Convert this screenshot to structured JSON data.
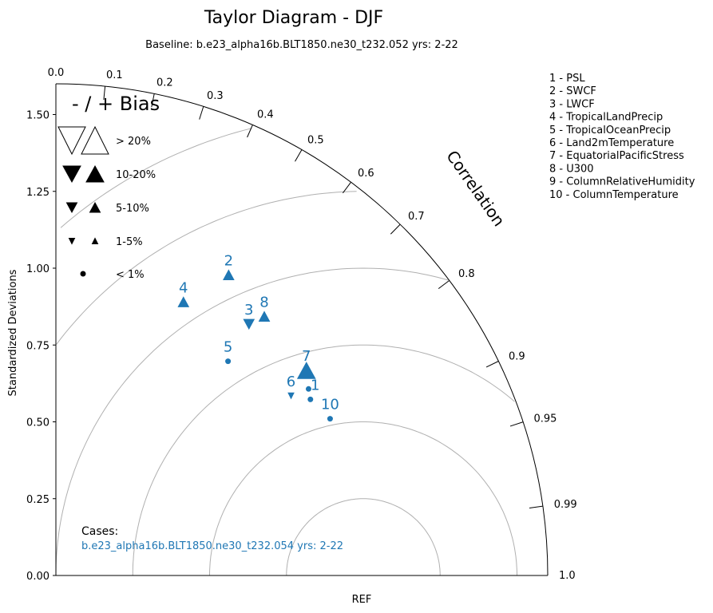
{
  "chart_data": {
    "type": "scatter",
    "title": "Taylor Diagram - DJF",
    "subtitle": "Baseline: b.e23_alpha16b.BLT1850.ne30_t232.052  yrs: 2-22",
    "ylabel": "Standardized Deviations",
    "xlabel": "REF",
    "arc_label": "Correlation",
    "std_ticks": [
      {
        "value": 0.0,
        "label": "0.00"
      },
      {
        "value": 0.25,
        "label": "0.25"
      },
      {
        "value": 0.5,
        "label": "0.50"
      },
      {
        "value": 0.75,
        "label": "0.75"
      },
      {
        "value": 1.0,
        "label": "1.00"
      },
      {
        "value": 1.25,
        "label": "1.25"
      },
      {
        "value": 1.5,
        "label": "1.50"
      }
    ],
    "std_max": 1.6,
    "corr_ticks": [
      {
        "value": 0.0,
        "label": "0.0"
      },
      {
        "value": 0.1,
        "label": "0.1"
      },
      {
        "value": 0.2,
        "label": "0.2"
      },
      {
        "value": 0.3,
        "label": "0.3"
      },
      {
        "value": 0.4,
        "label": "0.4"
      },
      {
        "value": 0.5,
        "label": "0.5"
      },
      {
        "value": 0.6,
        "label": "0.6"
      },
      {
        "value": 0.7,
        "label": "0.7"
      },
      {
        "value": 0.8,
        "label": "0.8"
      },
      {
        "value": 0.9,
        "label": "0.9"
      },
      {
        "value": 0.95,
        "label": "0.95"
      },
      {
        "value": 0.99,
        "label": "0.99"
      },
      {
        "value": 1.0,
        "label": "1.0"
      }
    ],
    "rms_arcs": [
      0.25,
      0.5,
      0.75,
      1.0,
      1.25,
      1.5
    ],
    "points": [
      {
        "id": "1",
        "x": 0.828,
        "y": 0.573,
        "bias": "< 1%",
        "dir": "dot"
      },
      {
        "id": "2",
        "x": 0.562,
        "y": 0.978,
        "bias": "5-10%",
        "dir": "up"
      },
      {
        "id": "3",
        "x": 0.628,
        "y": 0.818,
        "bias": "5-10%",
        "dir": "down"
      },
      {
        "id": "4",
        "x": 0.415,
        "y": 0.89,
        "bias": "5-10%",
        "dir": "up"
      },
      {
        "id": "5",
        "x": 0.56,
        "y": 0.697,
        "bias": "< 1%",
        "dir": "dot"
      },
      {
        "id": "6",
        "x": 0.765,
        "y": 0.585,
        "bias": "1-5%",
        "dir": "down"
      },
      {
        "id": "7",
        "x": 0.815,
        "y": 0.667,
        "bias": "10-20%",
        "dir": "up"
      },
      {
        "id": "8",
        "x": 0.678,
        "y": 0.843,
        "bias": "5-10%",
        "dir": "up"
      },
      {
        "id": "9",
        "x": 0.822,
        "y": 0.607,
        "bias": "< 1%",
        "dir": "dot"
      },
      {
        "id": "10",
        "x": 0.892,
        "y": 0.51,
        "bias": "< 1%",
        "dir": "dot"
      }
    ],
    "series_color": "#1f77b4",
    "bias_legend": {
      "title": "- / + Bias",
      "entries": [
        {
          "label": "> 20%",
          "style": "hollow",
          "size": "xl"
        },
        {
          "label": "10-20%",
          "style": "filled",
          "size": "l"
        },
        {
          "label": "5-10%",
          "style": "filled",
          "size": "m"
        },
        {
          "label": "1-5%",
          "style": "filled",
          "size": "s"
        },
        {
          "label": "< 1%",
          "style": "dot",
          "size": "xs"
        }
      ]
    },
    "variable_legend": [
      "1 - PSL",
      "2 - SWCF",
      "3 - LWCF",
      "4 - TropicalLandPrecip",
      "5 - TropicalOceanPrecip",
      "6 - Land2mTemperature",
      "7 - EquatorialPacificStress",
      "8 - U300",
      "9 - ColumnRelativeHumidity",
      "10 - ColumnTemperature"
    ],
    "cases": {
      "heading": "Cases:",
      "items": [
        "b.e23_alpha16b.BLT1850.ne30_t232.054  yrs: 2-22"
      ]
    }
  }
}
